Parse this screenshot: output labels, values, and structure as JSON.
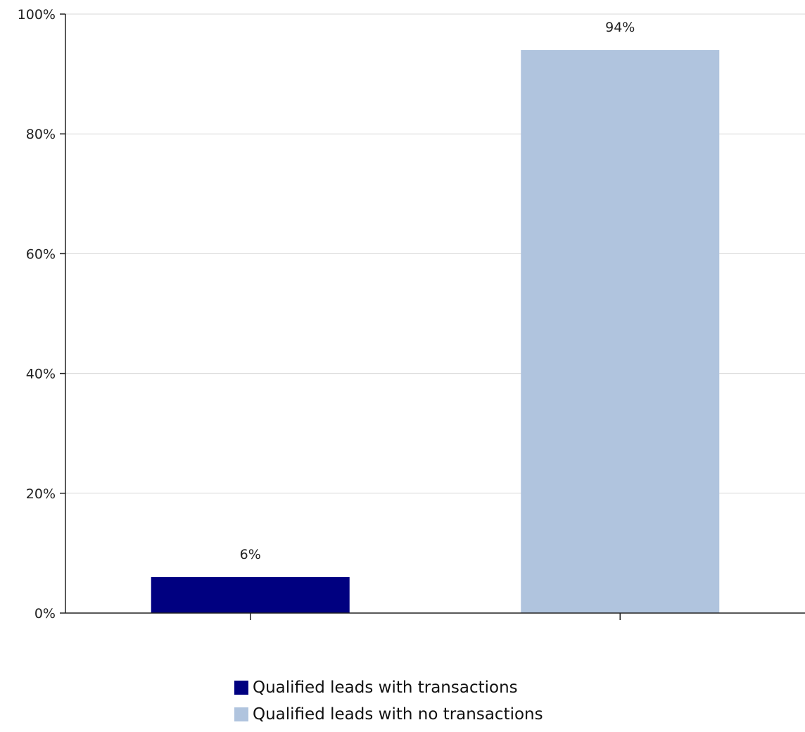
{
  "chart_data": {
    "type": "bar",
    "categories": [
      "",
      ""
    ],
    "series": [
      {
        "name": "Qualified leads with transactions",
        "values": [
          6,
          null
        ],
        "color": "#000080"
      },
      {
        "name": "Qualified leads with no transactions",
        "values": [
          null,
          94
        ],
        "color": "#b0c4de"
      }
    ],
    "data_labels": [
      "6%",
      "94%"
    ],
    "title": "",
    "xlabel": "",
    "ylabel": "",
    "ylim": [
      0,
      100
    ],
    "yticks": [
      0,
      20,
      40,
      60,
      80,
      100
    ],
    "ytick_labels": [
      "0%",
      "20%",
      "40%",
      "60%",
      "80%",
      "100%"
    ],
    "grid": true,
    "legend": "bottom"
  },
  "colors": {
    "axis": "#222222",
    "grid": "#d9d9d9"
  }
}
